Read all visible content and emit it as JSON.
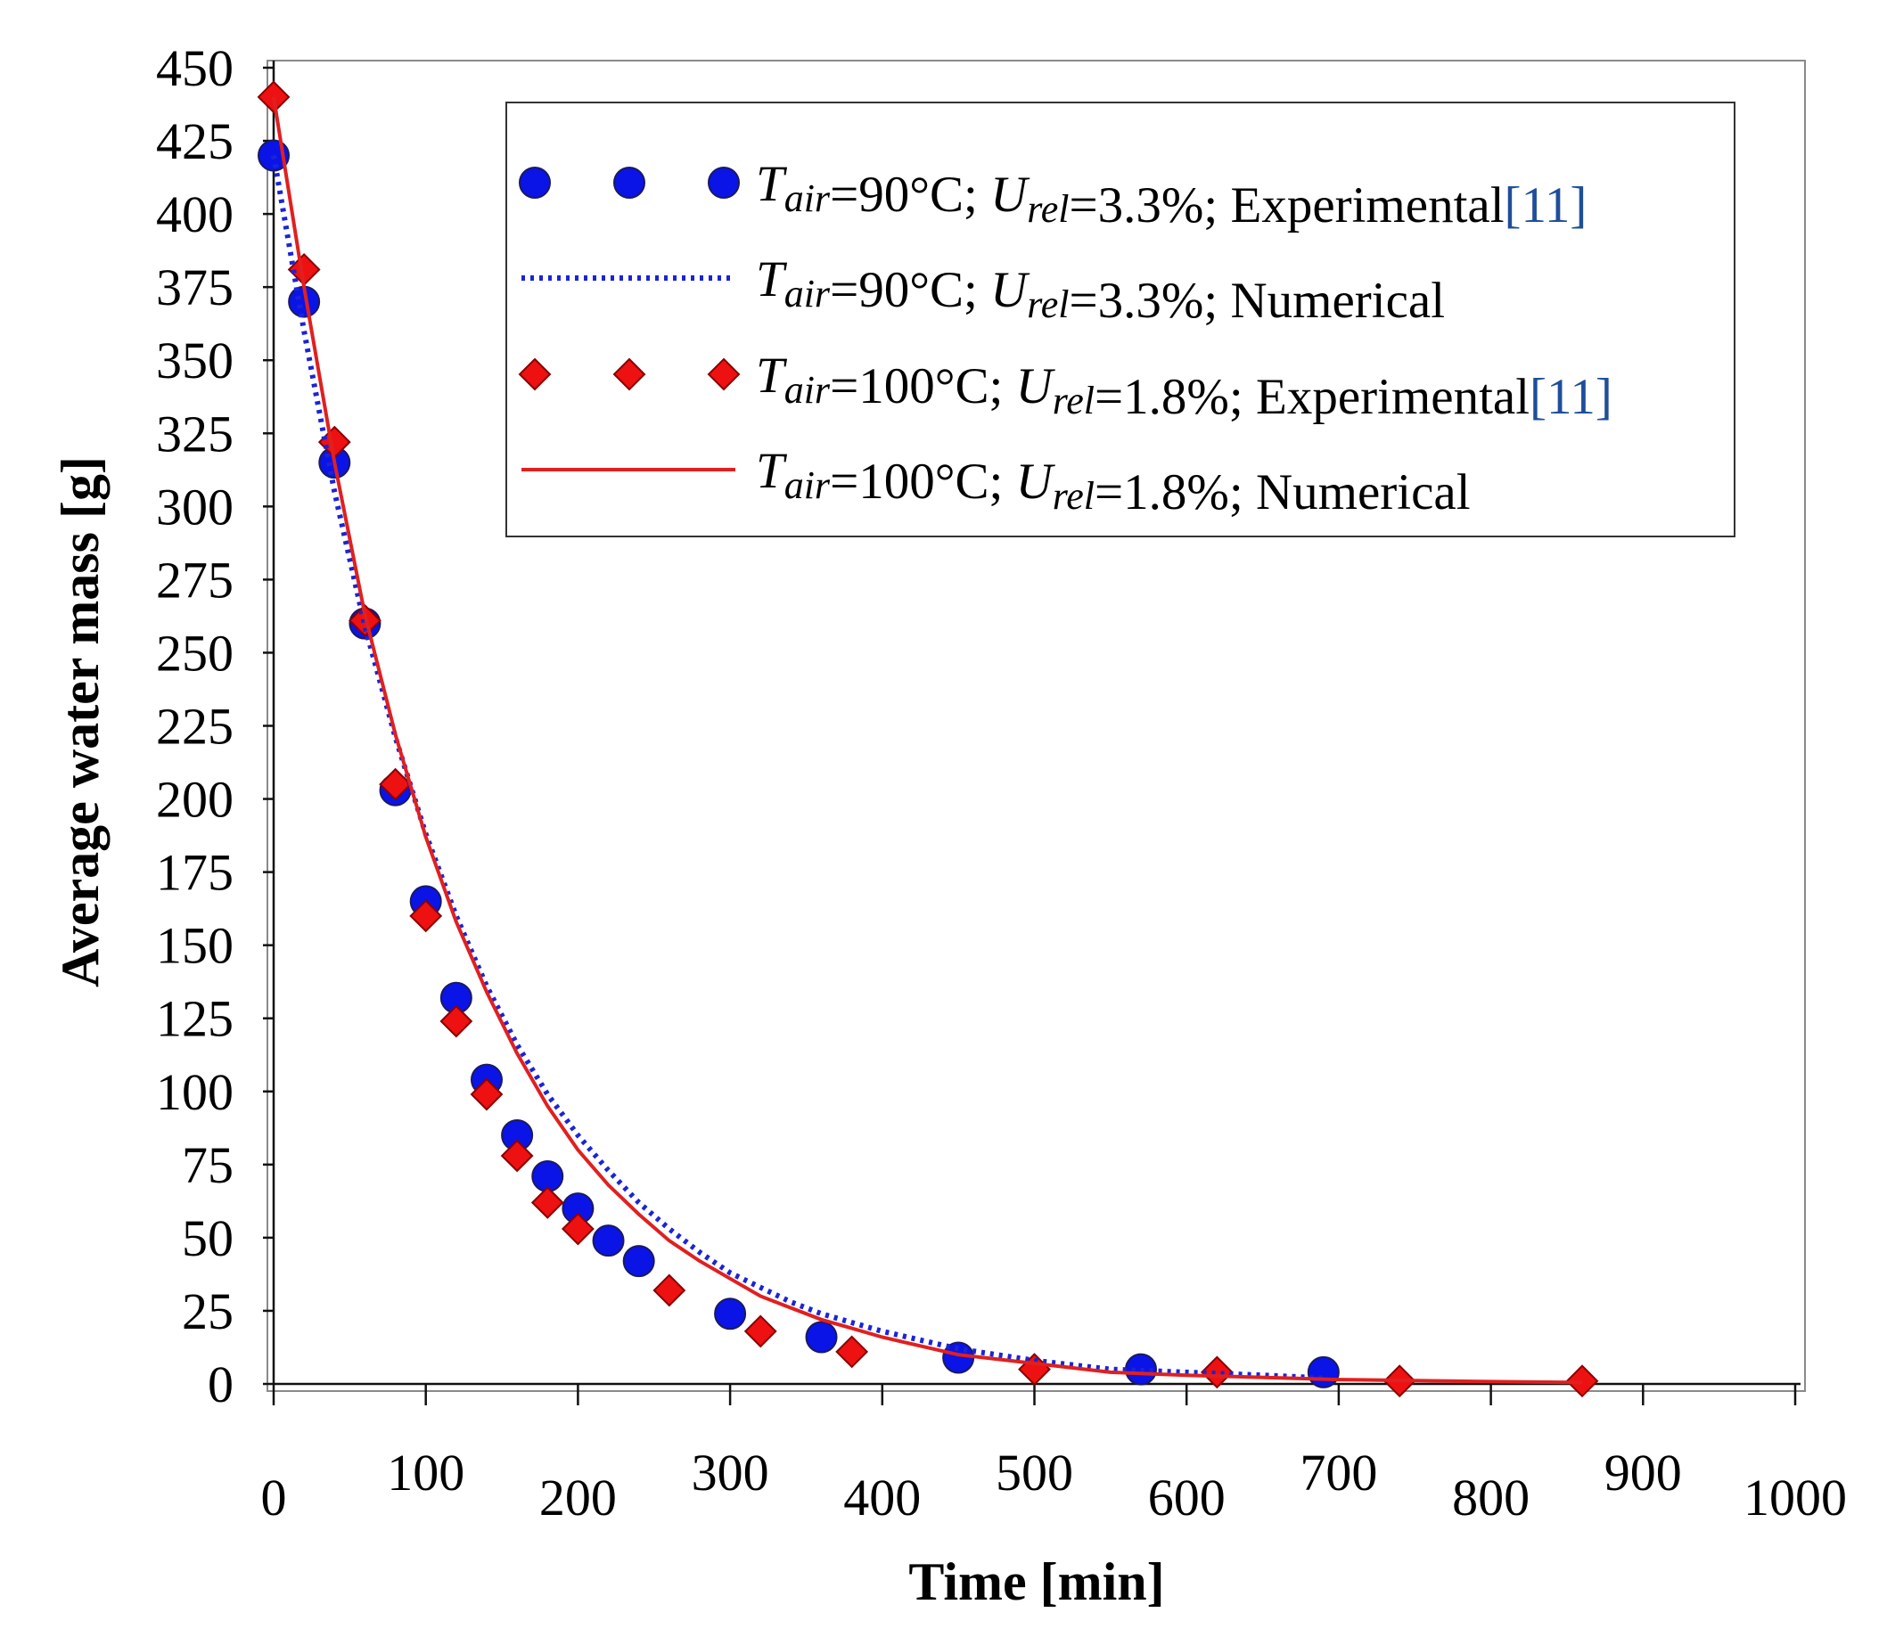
{
  "chart_data": {
    "type": "scatter",
    "xlabel": "Time [min]",
    "ylabel": "Average water mass [g]",
    "xlim": [
      0,
      1000
    ],
    "ylim": [
      0,
      450
    ],
    "xticks": [
      "0",
      "100",
      "200",
      "300",
      "400",
      "500",
      "600",
      "700",
      "800",
      "900",
      "1000"
    ],
    "yticks": [
      "0",
      "25",
      "50",
      "75",
      "100",
      "125",
      "150",
      "175",
      "200",
      "225",
      "250",
      "275",
      "300",
      "325",
      "350",
      "375",
      "400",
      "425",
      "450"
    ],
    "grid": false,
    "legend_position": "top-right",
    "series": [
      {
        "kind": "points",
        "marker": "circle",
        "color": "#0a14e6",
        "legend": {
          "T": "T",
          "T_sub": "air",
          "cond1": "=90°C; ",
          "U": "U",
          "U_sub": "rel",
          "cond2": "=3.3%; Experimental",
          "ref": "[11]"
        },
        "x": [
          0,
          20,
          40,
          60,
          80,
          100,
          120,
          140,
          160,
          180,
          200,
          220,
          240,
          300,
          360,
          450,
          570,
          690
        ],
        "y": [
          420,
          370,
          315,
          260,
          203,
          165,
          132,
          104,
          85,
          71,
          60,
          49,
          42,
          24,
          16,
          9,
          5,
          4
        ]
      },
      {
        "kind": "line",
        "style": "dotted",
        "color": "#1a24d6",
        "legend": {
          "T": "T",
          "T_sub": "air",
          "cond1": "=90°C; ",
          "U": "U",
          "U_sub": "rel",
          "cond2": "=3.3%; Numerical",
          "ref": ""
        },
        "x": [
          0,
          20,
          40,
          60,
          80,
          100,
          120,
          140,
          160,
          180,
          200,
          220,
          240,
          260,
          280,
          300,
          320,
          340,
          360,
          380,
          400,
          450,
          500,
          550,
          600,
          650,
          690
        ],
        "y": [
          420,
          360,
          305,
          259,
          221,
          188,
          160,
          136,
          116,
          99,
          85,
          73,
          62,
          53,
          45,
          38,
          33,
          28,
          24,
          21,
          18,
          12,
          8,
          5,
          4,
          3,
          2
        ]
      },
      {
        "kind": "points",
        "marker": "diamond",
        "color": "#ee1111",
        "legend": {
          "T": "T",
          "T_sub": "air",
          "cond1": "=100°C; ",
          "U": "U",
          "U_sub": "rel",
          "cond2": "=1.8%; Experimental",
          "ref": "[11]"
        },
        "x": [
          0,
          20,
          40,
          60,
          80,
          100,
          120,
          140,
          160,
          180,
          200,
          260,
          320,
          380,
          500,
          620,
          740,
          860
        ],
        "y": [
          440,
          381,
          322,
          261,
          205,
          160,
          124,
          99,
          78,
          62,
          53,
          32,
          18,
          11,
          5,
          4,
          1,
          1
        ]
      },
      {
        "kind": "line",
        "style": "solid",
        "color": "#e02020",
        "legend": {
          "T": "T",
          "T_sub": "air",
          "cond1": "=100°C; ",
          "U": "U",
          "U_sub": "rel",
          "cond2": "=1.8%; Numerical",
          "ref": ""
        },
        "x": [
          0,
          20,
          40,
          60,
          80,
          100,
          120,
          140,
          160,
          180,
          200,
          220,
          240,
          260,
          280,
          300,
          320,
          340,
          360,
          380,
          400,
          450,
          500,
          550,
          600,
          700,
          800,
          860
        ],
        "y": [
          440,
          375,
          315,
          263,
          222,
          187,
          158,
          134,
          113,
          95,
          80,
          68,
          58,
          49,
          42,
          36,
          30,
          26,
          22,
          19,
          16,
          10,
          7,
          4,
          3,
          1.5,
          0.8,
          0.5
        ]
      }
    ]
  }
}
